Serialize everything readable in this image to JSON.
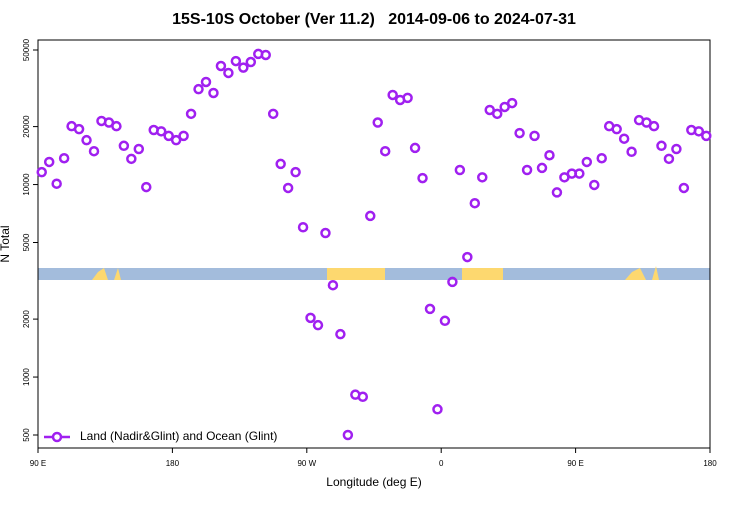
{
  "chart_data": {
    "type": "scatter",
    "title": "15S-10S October (Ver 11.2)   2014-09-06 to 2024-07-31",
    "xlabel": "Longitude (deg E)",
    "ylabel": "N Total",
    "log_y": true,
    "legend": "bottom-left",
    "xlim": [
      90,
      540
    ],
    "ylim": [
      428,
      56350
    ],
    "xticks": [
      {
        "value": 90,
        "label": "90 E"
      },
      180,
      {
        "value": 270,
        "label": "90 W"
      },
      {
        "value": 360,
        "label": "0"
      },
      {
        "value": 450,
        "label": "90 E"
      },
      {
        "value": 540,
        "label": "180"
      }
    ],
    "yticks": [
      500,
      1000,
      2000,
      5000,
      10000,
      20000,
      50000
    ],
    "series": [
      {
        "name": "Land (Nadir&Glint) and Ocean (Glint)",
        "color": "#a020f0",
        "x": [
          92.5,
          97.5,
          102.5,
          107.5,
          112.5,
          117.5,
          122.5,
          127.5,
          132.5,
          137.5,
          142.5,
          147.5,
          152.5,
          157.5,
          162.5,
          167.5,
          172.5,
          177.5,
          182.5,
          187.5,
          192.5,
          197.5,
          202.5,
          207.5,
          212.5,
          217.5,
          222.5,
          227.5,
          232.5,
          237.5,
          242.5,
          247.5,
          252.5,
          257.5,
          262.5,
          267.5,
          272.5,
          277.5,
          282.5,
          287.5,
          292.5,
          297.5,
          302.5,
          307.5,
          312.5,
          317.5,
          322.5,
          327.5,
          332.5,
          337.5,
          342.5,
          347.5,
          352.5,
          357.5,
          362.5,
          367.5,
          372.5,
          377.5,
          382.5,
          387.5,
          392.5,
          397.5,
          402.5,
          407.5,
          412.5,
          417.5,
          422.5,
          427.5,
          432.5,
          437.5,
          442.5,
          447.5,
          452.5,
          457.5,
          462.5,
          467.5,
          472.5,
          477.5,
          482.5,
          487.5,
          492.5,
          497.5,
          502.5,
          507.5,
          512.5,
          517.5,
          522.5,
          527.5,
          532.5,
          537.5
        ],
        "values": [
          11600,
          13100,
          10100,
          13700,
          20100,
          19400,
          17000,
          14900,
          21400,
          21000,
          20100,
          15900,
          13600,
          15300,
          9700,
          19200,
          18900,
          17900,
          17000,
          17900,
          23300,
          31300,
          34100,
          29900,
          41300,
          38000,
          43800,
          40500,
          43300,
          47700,
          47100,
          23300,
          12800,
          9600,
          11600,
          6000,
          2030,
          1860,
          5600,
          3000,
          1670,
          500,
          810,
          790,
          6870,
          21000,
          14900,
          29200,
          27500,
          28200,
          15500,
          10800,
          2260,
          680,
          1960,
          3120,
          11900,
          4200,
          8000,
          10900,
          24400,
          23300,
          25300,
          26500,
          18500,
          11900,
          17900,
          12200,
          14200,
          9100,
          10900,
          11400,
          11400,
          13100,
          9950,
          13700,
          20100,
          19400,
          17300,
          14800,
          21600,
          21000,
          20100,
          15900,
          13600,
          15300,
          9600,
          19200,
          18900,
          17900
        ]
      }
    ]
  }
}
